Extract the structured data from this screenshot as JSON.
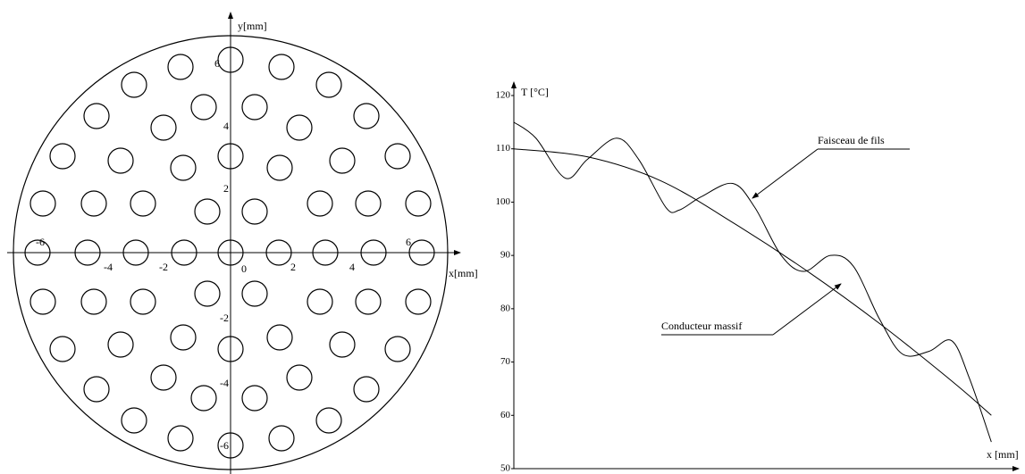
{
  "diagram": {
    "x_axis_label": "x[mm]",
    "y_axis_label": "y[mm]",
    "x_tick_labels": [
      "-6",
      "-4",
      "-2",
      "0",
      "2",
      "4",
      "6"
    ],
    "y_tick_labels": [
      "6",
      "4",
      "2",
      "-2",
      "-4",
      "-6"
    ]
  },
  "chart_data": {
    "type": "line",
    "y_axis_label": "T [°C]",
    "x_axis_label": "x [mm]",
    "xlim": [
      0,
      6.8
    ],
    "ylim": [
      50,
      120
    ],
    "yticks": [
      50,
      60,
      70,
      80,
      90,
      100,
      110,
      120
    ],
    "annotations": [
      "Faisceau de fils",
      "Conducteur massif"
    ],
    "series": [
      {
        "name": "Faisceau de fils",
        "color": "#000000",
        "x": [
          0,
          0.3,
          0.7,
          1.0,
          1.4,
          1.7,
          2.07,
          2.25,
          2.55,
          2.98,
          3.28,
          3.64,
          3.95,
          4.31,
          4.62,
          4.98,
          5.29,
          5.65,
          5.96,
          6.2,
          6.5
        ],
        "values": [
          115,
          112,
          104.5,
          108,
          112,
          108,
          99,
          98.5,
          101,
          103.5,
          99,
          90,
          87,
          90,
          88,
          78,
          71.5,
          72,
          74,
          67,
          55
        ]
      },
      {
        "name": "Conducteur massif",
        "color": "#000000",
        "x": [
          0,
          1,
          2,
          3,
          4,
          5,
          6,
          6.5
        ],
        "values": [
          110,
          108.5,
          104,
          96,
          87,
          77,
          66,
          60
        ]
      }
    ]
  }
}
